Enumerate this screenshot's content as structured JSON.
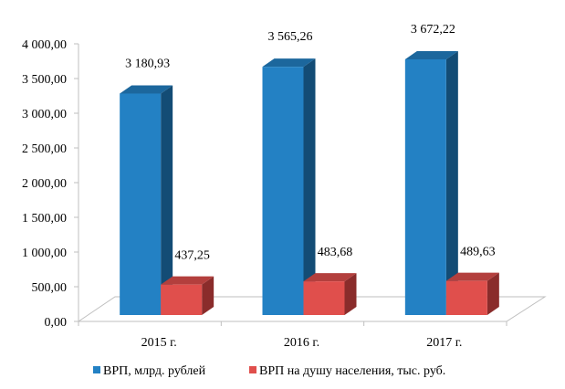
{
  "chart_data": {
    "type": "bar",
    "style": "3d-clustered-column",
    "categories": [
      "2015 г.",
      "2016 г.",
      "2017 г."
    ],
    "series": [
      {
        "name": "ВРП, млрд. рублей",
        "values": [
          3180.93,
          3565.26,
          3672.22
        ],
        "labels": [
          "3 180,93",
          "3 565,26",
          "3 672,22"
        ],
        "color": "#2381C4",
        "top_color": "#1C679D",
        "side_color": "#134C75"
      },
      {
        "name": "ВРП на душу  населения, тыс. руб.",
        "values": [
          437.25,
          483.68,
          489.63
        ],
        "labels": [
          "437,25",
          "483,68",
          "489,63"
        ],
        "color": "#E04F4C",
        "top_color": "#B33F3D",
        "side_color": "#8A2C2B"
      }
    ],
    "ylim": [
      0,
      4000
    ],
    "yticks": [
      "0,00",
      "500,00",
      "1 000,00",
      "1 500,00",
      "2 000,00",
      "2 500,00",
      "3 000,00",
      "3 500,00",
      "4 000,00"
    ],
    "grid": false,
    "legend": "bottom"
  }
}
